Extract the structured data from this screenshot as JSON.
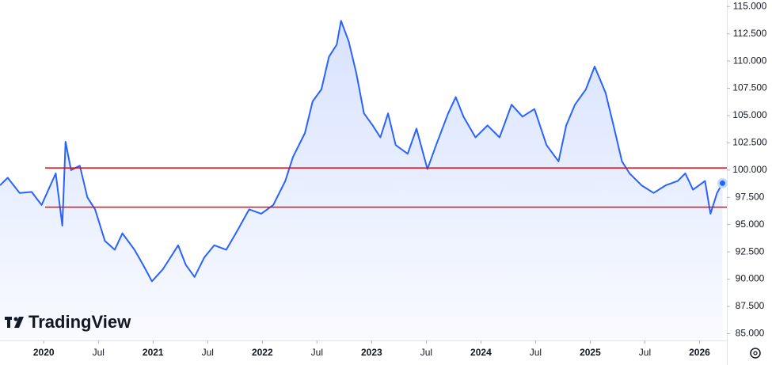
{
  "chart_data": {
    "type": "area",
    "watermark": "TradingView",
    "x": [
      2019.6,
      2019.67,
      2019.78,
      2019.89,
      2019.98,
      2020.11,
      2020.17,
      2020.2,
      2020.25,
      2020.33,
      2020.4,
      2020.47,
      2020.56,
      2020.65,
      2020.72,
      2020.83,
      2020.91,
      2020.99,
      2021.09,
      2021.16,
      2021.23,
      2021.3,
      2021.38,
      2021.47,
      2021.56,
      2021.67,
      2021.78,
      2021.88,
      2021.99,
      2022.1,
      2022.21,
      2022.28,
      2022.39,
      2022.46,
      2022.54,
      2022.61,
      2022.68,
      2022.72,
      2022.79,
      2022.86,
      2022.93,
      2023.01,
      2023.08,
      2023.15,
      2023.22,
      2023.33,
      2023.41,
      2023.51,
      2023.59,
      2023.7,
      2023.77,
      2023.84,
      2023.95,
      2024.06,
      2024.17,
      2024.28,
      2024.38,
      2024.49,
      2024.6,
      2024.71,
      2024.78,
      2024.86,
      2024.96,
      2025.04,
      2025.14,
      2025.22,
      2025.29,
      2025.36,
      2025.47,
      2025.58,
      2025.69,
      2025.8,
      2025.87,
      2025.94,
      2026.05,
      2026.1,
      2026.16,
      2026.21
    ],
    "series": [
      {
        "color": "#2962ff",
        "values": [
          98.6,
          99.3,
          97.9,
          98.0,
          96.8,
          99.7,
          94.9,
          102.6,
          100.0,
          100.4,
          97.5,
          96.4,
          93.5,
          92.7,
          94.2,
          92.7,
          91.3,
          89.8,
          90.9,
          92.0,
          93.1,
          91.3,
          90.2,
          92.0,
          93.1,
          92.7,
          94.6,
          96.4,
          96.0,
          96.8,
          99.0,
          101.2,
          103.4,
          106.3,
          107.4,
          110.4,
          111.5,
          113.7,
          111.8,
          108.9,
          105.2,
          104.1,
          103.0,
          105.2,
          102.3,
          101.5,
          103.8,
          100.1,
          102.3,
          105.2,
          106.7,
          104.9,
          103.0,
          104.1,
          103.0,
          106.0,
          104.9,
          105.6,
          102.3,
          100.8,
          104.1,
          106.0,
          107.4,
          109.5,
          107.1,
          103.8,
          100.8,
          99.7,
          98.6,
          97.9,
          98.6,
          99.0,
          99.7,
          98.2,
          99.0,
          96.0,
          97.9,
          98.8
        ]
      }
    ],
    "hlines": [
      {
        "value": 100.2,
        "color": "#e50914"
      },
      {
        "value": 96.6,
        "color": "#e50914"
      }
    ],
    "xlim": [
      2019.6,
      2026.25
    ],
    "xticks": [
      {
        "value": 2020,
        "label": "2020"
      },
      {
        "value": 2020.5,
        "label": "Jul"
      },
      {
        "value": 2021,
        "label": "2021"
      },
      {
        "value": 2021.5,
        "label": "Jul"
      },
      {
        "value": 2022,
        "label": "2022"
      },
      {
        "value": 2022.5,
        "label": "Jul"
      },
      {
        "value": 2023,
        "label": "2023"
      },
      {
        "value": 2023.5,
        "label": "Jul"
      },
      {
        "value": 2024,
        "label": "2024"
      },
      {
        "value": 2024.5,
        "label": "Jul"
      },
      {
        "value": 2025,
        "label": "2025"
      },
      {
        "value": 2025.5,
        "label": "Jul"
      },
      {
        "value": 2026,
        "label": "2026"
      }
    ],
    "ylim": [
      84.375,
      115.6
    ],
    "yticks": [
      {
        "value": 85,
        "label": "85.000"
      },
      {
        "value": 87.5,
        "label": "87.500"
      },
      {
        "value": 90,
        "label": "90.000"
      },
      {
        "value": 92.5,
        "label": "92.500"
      },
      {
        "value": 95,
        "label": "95.000"
      },
      {
        "value": 97.5,
        "label": "97.500"
      },
      {
        "value": 100,
        "label": "100.000"
      },
      {
        "value": 102.5,
        "label": "102.500"
      },
      {
        "value": 105,
        "label": "105.000"
      },
      {
        "value": 107.5,
        "label": "107.500"
      },
      {
        "value": 110,
        "label": "110.000"
      },
      {
        "value": 112.5,
        "label": "112.500"
      },
      {
        "value": 115,
        "label": "115.000"
      }
    ]
  }
}
